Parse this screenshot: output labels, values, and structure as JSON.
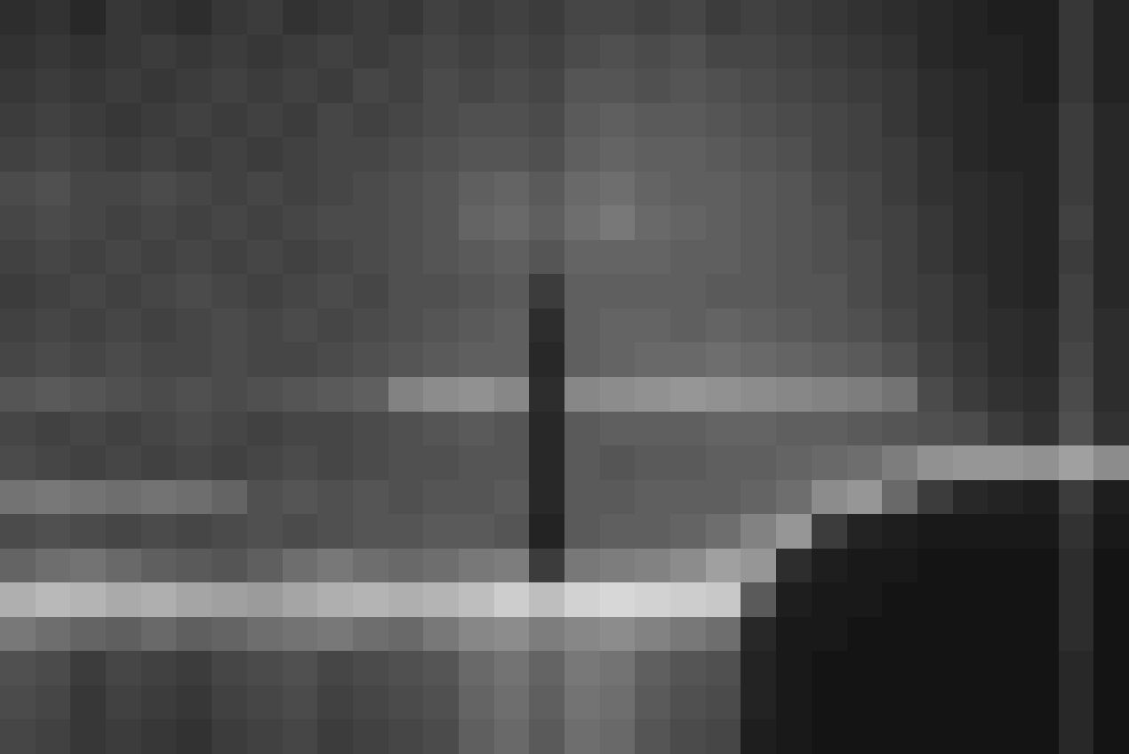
{
  "chart_data": {
    "type": "heatmap",
    "tick_labels": false,
    "zlim": [
      0,
      255
    ],
    "z": [
      [
        45,
        50,
        40,
        55,
        50,
        45,
        55,
        60,
        50,
        55,
        60,
        55,
        65,
        60,
        65,
        60,
        70,
        70,
        65,
        70,
        60,
        65,
        60,
        55,
        50,
        45,
        40,
        35,
        30,
        30,
        55,
        35
      ],
      [
        50,
        55,
        50,
        55,
        60,
        55,
        60,
        55,
        60,
        65,
        60,
        65,
        70,
        65,
        70,
        65,
        75,
        80,
        75,
        80,
        70,
        70,
        65,
        60,
        55,
        50,
        40,
        35,
        35,
        30,
        55,
        35
      ],
      [
        55,
        60,
        55,
        60,
        55,
        60,
        65,
        60,
        65,
        60,
        70,
        65,
        75,
        70,
        75,
        70,
        85,
        85,
        80,
        85,
        80,
        75,
        70,
        65,
        60,
        55,
        45,
        40,
        35,
        30,
        55,
        35
      ],
      [
        60,
        65,
        60,
        55,
        60,
        65,
        60,
        65,
        60,
        70,
        65,
        70,
        75,
        80,
        80,
        75,
        90,
        95,
        90,
        90,
        85,
        80,
        75,
        70,
        65,
        55,
        45,
        40,
        35,
        35,
        60,
        40
      ],
      [
        65,
        70,
        65,
        60,
        65,
        60,
        65,
        60,
        65,
        70,
        70,
        75,
        80,
        85,
        85,
        80,
        95,
        100,
        95,
        95,
        90,
        85,
        80,
        70,
        65,
        60,
        50,
        40,
        35,
        35,
        60,
        40
      ],
      [
        75,
        80,
        70,
        70,
        75,
        70,
        65,
        70,
        65,
        70,
        75,
        80,
        85,
        95,
        100,
        90,
        105,
        110,
        100,
        95,
        95,
        90,
        85,
        75,
        70,
        60,
        50,
        45,
        40,
        35,
        60,
        40
      ],
      [
        70,
        75,
        70,
        65,
        70,
        65,
        70,
        65,
        70,
        75,
        75,
        80,
        85,
        100,
        105,
        95,
        110,
        120,
        105,
        100,
        95,
        90,
        85,
        80,
        70,
        65,
        55,
        45,
        40,
        35,
        65,
        40
      ],
      [
        65,
        70,
        65,
        70,
        65,
        70,
        65,
        70,
        65,
        70,
        75,
        80,
        85,
        90,
        95,
        85,
        100,
        100,
        100,
        95,
        95,
        90,
        85,
        80,
        75,
        65,
        55,
        45,
        40,
        35,
        60,
        40
      ],
      [
        60,
        65,
        70,
        65,
        70,
        75,
        70,
        65,
        70,
        75,
        70,
        80,
        80,
        85,
        90,
        60,
        95,
        95,
        95,
        95,
        90,
        90,
        85,
        85,
        75,
        65,
        60,
        50,
        40,
        35,
        65,
        40
      ],
      [
        65,
        70,
        65,
        70,
        65,
        70,
        75,
        70,
        75,
        70,
        75,
        80,
        85,
        90,
        95,
        45,
        95,
        100,
        100,
        95,
        100,
        95,
        90,
        85,
        80,
        70,
        60,
        50,
        45,
        40,
        65,
        45
      ],
      [
        70,
        75,
        70,
        75,
        70,
        70,
        75,
        70,
        70,
        75,
        80,
        85,
        90,
        95,
        95,
        40,
        95,
        100,
        105,
        105,
        110,
        105,
        100,
        95,
        90,
        80,
        65,
        55,
        45,
        40,
        70,
        45
      ],
      [
        85,
        90,
        85,
        80,
        75,
        80,
        75,
        80,
        85,
        90,
        95,
        130,
        140,
        145,
        135,
        45,
        135,
        140,
        145,
        150,
        145,
        140,
        135,
        130,
        125,
        115,
        75,
        60,
        50,
        45,
        75,
        45
      ],
      [
        70,
        65,
        70,
        65,
        70,
        75,
        70,
        65,
        70,
        70,
        75,
        80,
        85,
        90,
        85,
        40,
        90,
        95,
        95,
        95,
        100,
        100,
        95,
        95,
        90,
        85,
        80,
        75,
        60,
        50,
        80,
        50
      ],
      [
        75,
        70,
        65,
        70,
        65,
        70,
        65,
        70,
        75,
        70,
        75,
        80,
        80,
        85,
        85,
        40,
        90,
        85,
        90,
        90,
        95,
        95,
        100,
        105,
        110,
        125,
        145,
        150,
        150,
        145,
        160,
        140
      ],
      [
        115,
        120,
        115,
        110,
        115,
        110,
        100,
        80,
        85,
        80,
        85,
        80,
        85,
        85,
        90,
        40,
        90,
        90,
        95,
        95,
        95,
        100,
        110,
        140,
        150,
        105,
        60,
        40,
        35,
        30,
        60,
        30
      ],
      [
        75,
        80,
        75,
        70,
        75,
        70,
        75,
        80,
        75,
        80,
        85,
        85,
        90,
        90,
        85,
        35,
        90,
        95,
        95,
        100,
        110,
        130,
        150,
        60,
        35,
        30,
        25,
        25,
        25,
        25,
        50,
        25
      ],
      [
        100,
        110,
        115,
        105,
        95,
        90,
        85,
        95,
        110,
        120,
        110,
        105,
        110,
        120,
        125,
        60,
        120,
        125,
        130,
        140,
        160,
        150,
        45,
        30,
        25,
        25,
        20,
        20,
        20,
        20,
        45,
        20
      ],
      [
        175,
        185,
        180,
        170,
        175,
        165,
        160,
        155,
        165,
        175,
        180,
        175,
        180,
        190,
        205,
        190,
        210,
        215,
        210,
        205,
        200,
        90,
        30,
        25,
        25,
        20,
        20,
        20,
        20,
        20,
        45,
        20
      ],
      [
        120,
        110,
        100,
        95,
        105,
        95,
        100,
        110,
        115,
        120,
        110,
        105,
        120,
        135,
        140,
        125,
        135,
        140,
        130,
        120,
        110,
        40,
        25,
        25,
        20,
        20,
        20,
        20,
        20,
        20,
        45,
        20
      ],
      [
        80,
        75,
        60,
        70,
        65,
        60,
        70,
        75,
        80,
        70,
        75,
        80,
        85,
        105,
        115,
        100,
        120,
        115,
        95,
        85,
        80,
        35,
        25,
        20,
        20,
        20,
        20,
        20,
        20,
        20,
        40,
        20
      ],
      [
        75,
        70,
        55,
        65,
        60,
        55,
        65,
        70,
        75,
        65,
        70,
        75,
        80,
        100,
        110,
        95,
        115,
        110,
        90,
        80,
        75,
        35,
        25,
        20,
        20,
        20,
        20,
        20,
        20,
        20,
        40,
        20
      ],
      [
        70,
        65,
        55,
        60,
        55,
        50,
        60,
        65,
        70,
        60,
        65,
        70,
        75,
        95,
        105,
        90,
        110,
        105,
        85,
        75,
        70,
        30,
        25,
        20,
        20,
        20,
        20,
        20,
        20,
        20,
        40,
        20
      ]
    ]
  }
}
